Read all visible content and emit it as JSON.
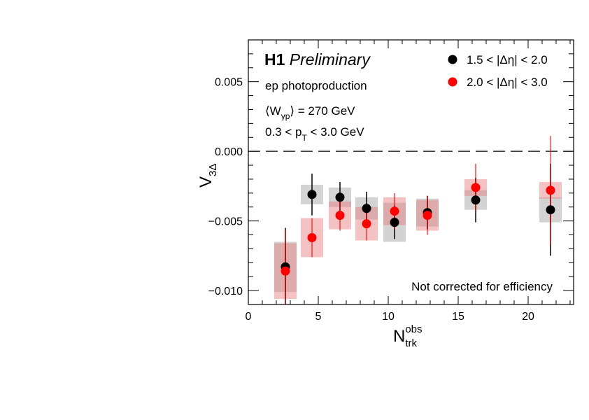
{
  "chart_data": {
    "type": "scatter",
    "title": "",
    "experiment": "H1",
    "status": "Preliminary",
    "annotations": [
      "ep photoproduction",
      "⟨W_γp⟩ = 270 GeV",
      "0.3 < p_T < 3.0 GeV",
      "Not corrected for efficiency"
    ],
    "xlabel": "N_trk^obs",
    "ylabel": "V_3Δ",
    "xlim": [
      0,
      23.25
    ],
    "ylim": [
      -0.011,
      0.008
    ],
    "xticks": [
      0,
      5,
      10,
      15,
      20
    ],
    "yticks": [
      -0.01,
      -0.005,
      0.0,
      0.005
    ],
    "ytick_labels": [
      "−0.010",
      "−0.005",
      "0.000",
      "0.005"
    ],
    "reference_line": 0.0,
    "legend_position": "top-right",
    "series": [
      {
        "name": "1.5 < |Δη| < 2.0",
        "color": "#000000",
        "sys_color": "#d3d3d3",
        "x": [
          2.65,
          4.55,
          6.55,
          8.45,
          10.45,
          12.8,
          16.25,
          21.6
        ],
        "y": [
          -0.0083,
          -0.0031,
          -0.0033,
          -0.0041,
          -0.0051,
          -0.0044,
          -0.0035,
          -0.0042
        ],
        "stat_err": [
          0.0028,
          0.0015,
          0.0011,
          0.0012,
          0.0012,
          0.0012,
          0.0016,
          0.0033
        ],
        "sys_err": [
          0.0018,
          0.0007,
          0.0007,
          0.0008,
          0.0014,
          0.001,
          0.0007,
          0.0009
        ]
      },
      {
        "name": "2.0 < |Δη| < 3.0",
        "color": "#ff0000",
        "sys_color": "#f0b8b8",
        "x": [
          2.65,
          4.55,
          6.55,
          8.45,
          10.45,
          12.8,
          16.25,
          21.6
        ],
        "y": [
          -0.0086,
          -0.0062,
          -0.0046,
          -0.0052,
          -0.0043,
          -0.0046,
          -0.0026,
          -0.0028
        ],
        "stat_err": [
          0.003,
          0.0014,
          0.0011,
          0.0012,
          0.0013,
          0.0014,
          0.0017,
          0.0039
        ],
        "sys_err": [
          0.002,
          0.0014,
          0.001,
          0.0012,
          0.001,
          0.0011,
          0.0006,
          0.0006
        ]
      }
    ]
  }
}
